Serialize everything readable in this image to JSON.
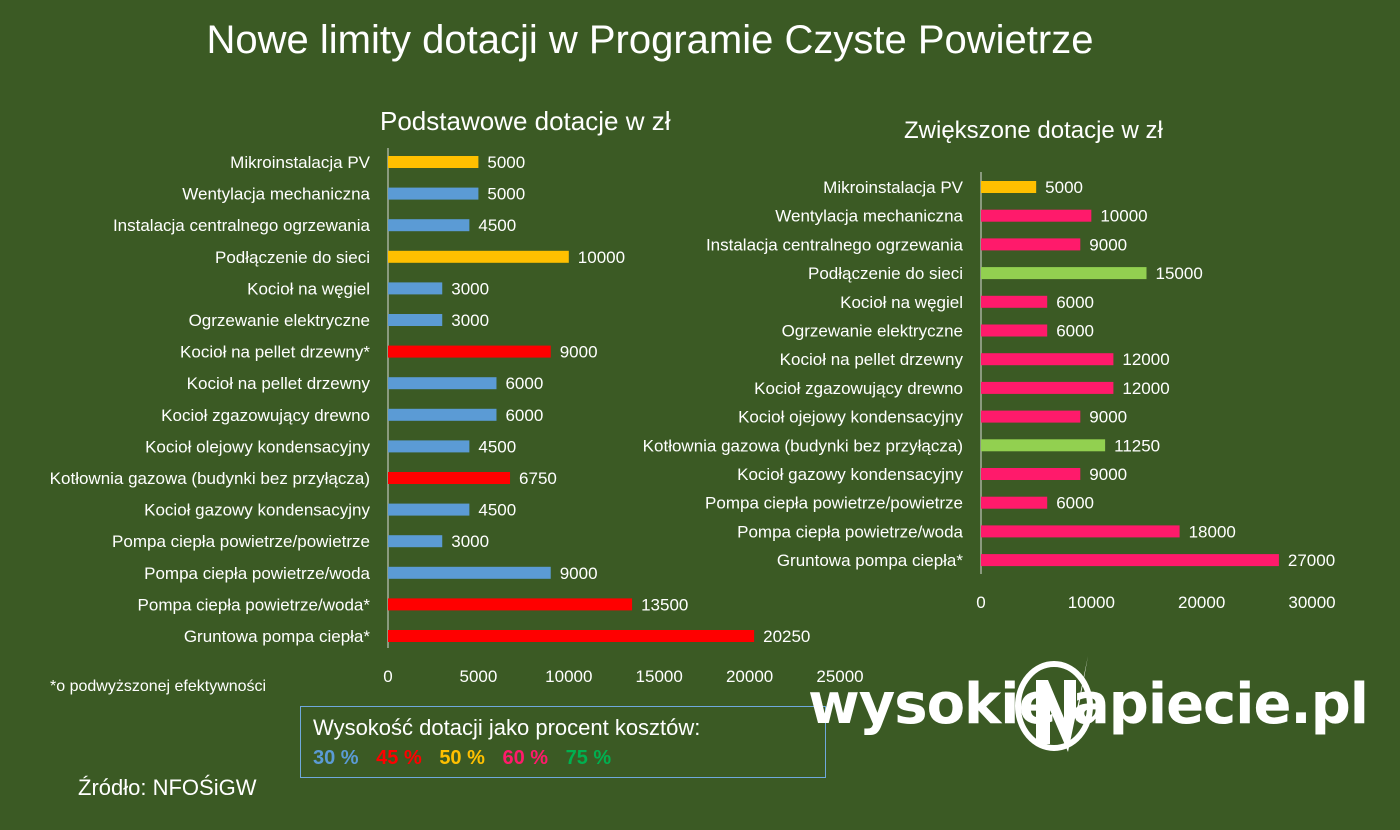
{
  "title": "Nowe limity dotacji w Programie Czyste Powietrze",
  "footnote": "*o podwyższonej efektywności",
  "source": "Źródło: NFOŚiGW",
  "legend": {
    "title": "Wysokość dotacji jako procent kosztów:",
    "items": [
      {
        "label": "30 %",
        "color": "#5b9bd5"
      },
      {
        "label": "45 %",
        "color": "#ff0000"
      },
      {
        "label": "50 %",
        "color": "#ffc000"
      },
      {
        "label": "60 %",
        "color": "#ff1a6b"
      },
      {
        "label": "75 %",
        "color": "#00b050"
      }
    ]
  },
  "brand": {
    "left": "wysokie",
    "right": "apiecie.pl"
  },
  "chart_data": [
    {
      "type": "bar",
      "orientation": "horizontal",
      "title": "Podstawowe dotacje w zł",
      "categories": [
        "Mikroinstalacja PV",
        "Wentylacja mechaniczna",
        "Instalacja centralnego ogrzewania",
        "Podłączenie do sieci ",
        "Kocioł na węgiel",
        "Ogrzewanie elektryczne",
        "Kocioł na pellet drzewny*",
        "Kocioł na pellet drzewny",
        "Kocioł zgazowujący drewno",
        "Kocioł olejowy kondensacyjny",
        "Kotłownia gazowa (budynki bez przyłącza)",
        "Kocioł gazowy kondensacyjny",
        "Pompa ciepła powietrze/powietrze",
        "Pompa ciepła powietrze/woda ",
        "Pompa ciepła powietrze/woda*",
        "Gruntowa pompa ciepła*"
      ],
      "values": [
        5000,
        5000,
        4500,
        10000,
        3000,
        3000,
        9000,
        6000,
        6000,
        4500,
        6750,
        4500,
        3000,
        9000,
        13500,
        20250
      ],
      "bar_colors": [
        "#ffc000",
        "#5b9bd5",
        "#5b9bd5",
        "#ffc000",
        "#5b9bd5",
        "#5b9bd5",
        "#ff0000",
        "#5b9bd5",
        "#5b9bd5",
        "#5b9bd5",
        "#ff0000",
        "#5b9bd5",
        "#5b9bd5",
        "#5b9bd5",
        "#ff0000",
        "#ff0000"
      ],
      "xlim": [
        0,
        25000
      ],
      "xticks": [
        "0",
        "5000",
        "10000",
        "15000",
        "20000",
        "25000"
      ],
      "xtick_values": [
        0,
        5000,
        10000,
        15000,
        20000,
        25000
      ],
      "data_labels": true,
      "grid": false
    },
    {
      "type": "bar",
      "orientation": "horizontal",
      "title": "Zwiększone dotacje w zł",
      "categories": [
        "Mikroinstalacja PV",
        "Wentylacja mechaniczna",
        "Instalacja centralnego ogrzewania",
        "Podłączenie do sieci ",
        "Kocioł na węgiel",
        "Ogrzewanie elektryczne",
        "Kocioł na pellet drzewny",
        "Kocioł zgazowujący drewno",
        "Kocioł ojejowy kondensacyjny",
        "Kotłownia gazowa (budynki bez przyłącza)",
        "Kocioł gazowy kondensacyjny",
        "Pompa ciepła powietrze/powietrze",
        "Pompa ciepła powietrze/woda ",
        "Gruntowa pompa ciepła*"
      ],
      "values": [
        5000,
        10000,
        9000,
        15000,
        6000,
        6000,
        12000,
        12000,
        9000,
        11250,
        9000,
        6000,
        18000,
        27000
      ],
      "bar_colors": [
        "#ffc000",
        "#ff1a6b",
        "#ff1a6b",
        "#92d050",
        "#ff1a6b",
        "#ff1a6b",
        "#ff1a6b",
        "#ff1a6b",
        "#ff1a6b",
        "#92d050",
        "#ff1a6b",
        "#ff1a6b",
        "#ff1a6b",
        "#ff1a6b"
      ],
      "xlim": [
        0,
        30000
      ],
      "xticks": [
        "0",
        "10000",
        "20000",
        "30000"
      ],
      "xtick_values": [
        0,
        10000,
        20000,
        30000
      ],
      "data_labels": true,
      "grid": false
    }
  ]
}
